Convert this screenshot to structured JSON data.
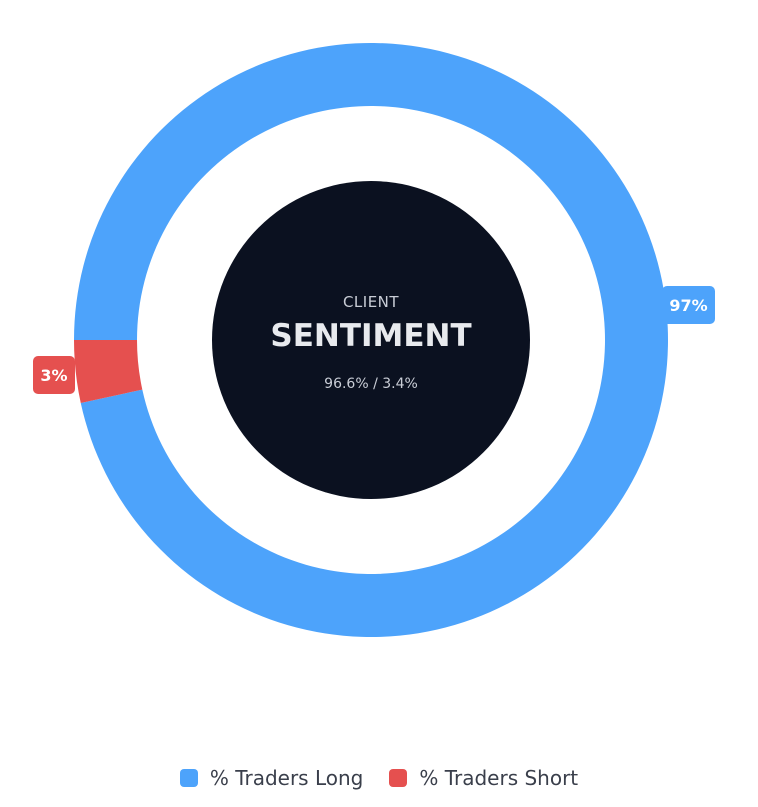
{
  "chart_data": {
    "type": "pie",
    "variant": "donut",
    "series": [
      {
        "name": "% Traders Long",
        "value": 96.6,
        "label": "97%",
        "color": "#4da3fb"
      },
      {
        "name": "% Traders Short",
        "value": 3.4,
        "label": "3%",
        "color": "#e5504f"
      }
    ],
    "legend_position": "bottom"
  },
  "center": {
    "eyebrow": "CLIENT",
    "title": "SENTIMENT",
    "subtitle": "96.6% / 3.4%",
    "background_color": "#0b1120"
  },
  "legend": {
    "items": [
      {
        "label": "% Traders Long",
        "color": "#4da3fb"
      },
      {
        "label": "% Traders Short",
        "color": "#e5504f"
      }
    ]
  }
}
